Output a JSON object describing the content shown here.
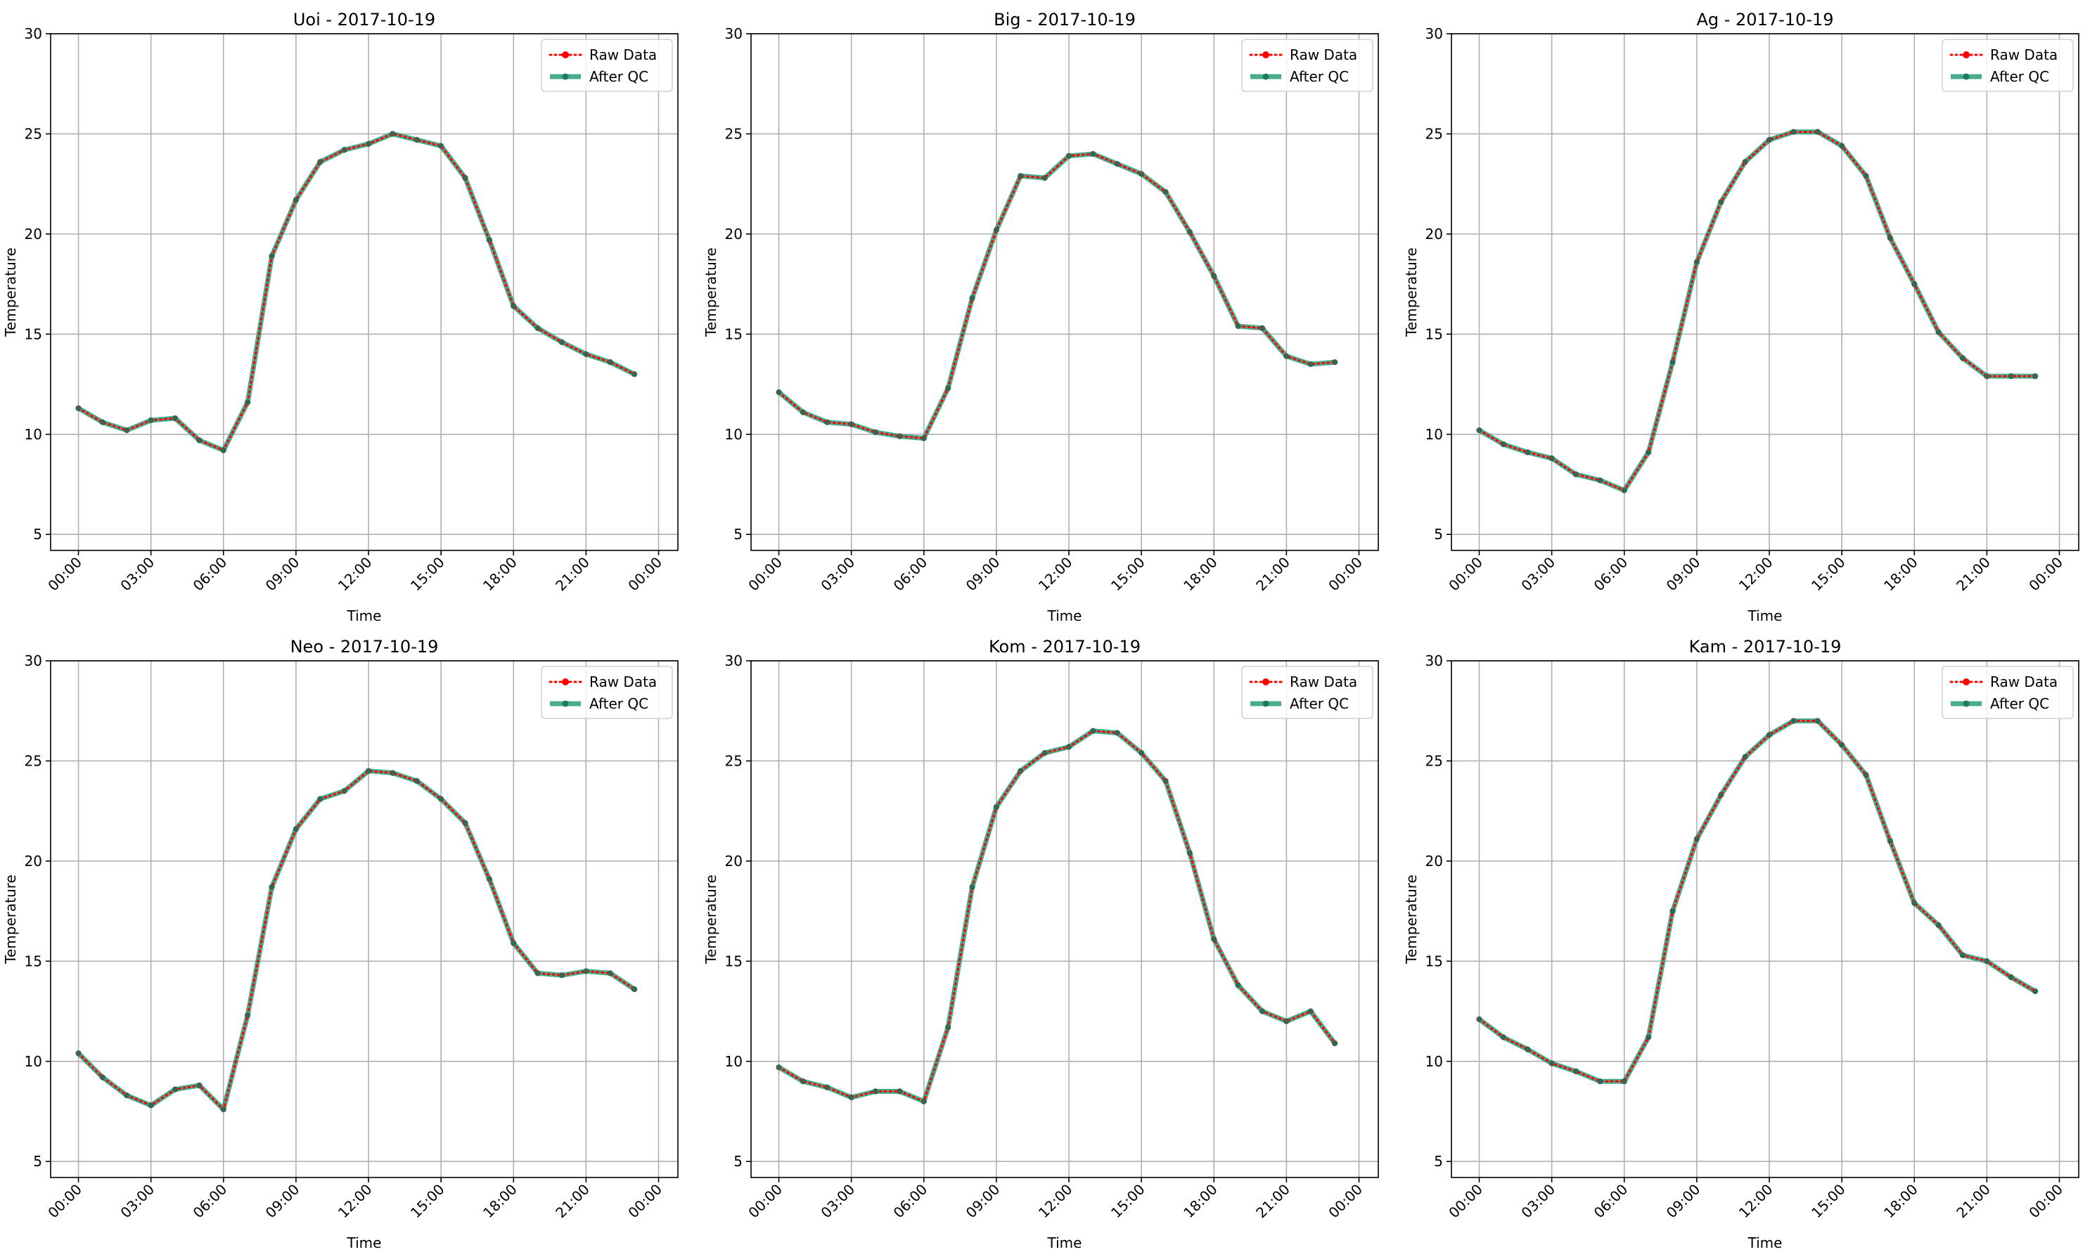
{
  "chart_data": [
    {
      "type": "line",
      "title": "Uoi - 2017-10-19",
      "xlabel": "Time",
      "ylabel": "Temperature",
      "x_hours": [
        0,
        1,
        2,
        3,
        4,
        5,
        6,
        7,
        8,
        9,
        10,
        11,
        12,
        13,
        14,
        15,
        16,
        17,
        18,
        19,
        20,
        21,
        22,
        23
      ],
      "x_ticks": [
        "00:00",
        "03:00",
        "06:00",
        "09:00",
        "12:00",
        "15:00",
        "18:00",
        "21:00",
        "00:00"
      ],
      "ylim": [
        4.2,
        30.0
      ],
      "y_ticks": [
        5,
        10,
        15,
        20,
        25,
        30
      ],
      "grid": true,
      "legend": "top-right",
      "series": [
        {
          "name": "Raw Data",
          "color": "#ff0000",
          "style": "dotted-markers",
          "values": [
            11.3,
            10.6,
            10.2,
            10.7,
            10.8,
            9.7,
            9.2,
            11.6,
            18.9,
            21.7,
            23.6,
            24.2,
            24.5,
            25.0,
            24.7,
            24.4,
            22.8,
            19.7,
            16.4,
            15.3,
            14.6,
            14.0,
            13.6,
            13.0
          ]
        },
        {
          "name": "After QC",
          "color": "#2a9d7a",
          "style": "solid-markers",
          "values": [
            11.3,
            10.6,
            10.2,
            10.7,
            10.8,
            9.7,
            9.2,
            11.6,
            18.9,
            21.7,
            23.6,
            24.2,
            24.5,
            25.0,
            24.7,
            24.4,
            22.8,
            19.7,
            16.4,
            15.3,
            14.6,
            14.0,
            13.6,
            13.0
          ]
        }
      ]
    },
    {
      "type": "line",
      "title": "Big - 2017-10-19",
      "xlabel": "Time",
      "ylabel": "Temperature",
      "x_hours": [
        0,
        1,
        2,
        3,
        4,
        5,
        6,
        7,
        8,
        9,
        10,
        11,
        12,
        13,
        14,
        15,
        16,
        17,
        18,
        19,
        20,
        21,
        22,
        23
      ],
      "x_ticks": [
        "00:00",
        "03:00",
        "06:00",
        "09:00",
        "12:00",
        "15:00",
        "18:00",
        "21:00",
        "00:00"
      ],
      "ylim": [
        4.2,
        30.0
      ],
      "y_ticks": [
        5,
        10,
        15,
        20,
        25,
        30
      ],
      "grid": true,
      "legend": "top-right",
      "series": [
        {
          "name": "Raw Data",
          "color": "#ff0000",
          "style": "dotted-markers",
          "values": [
            12.1,
            11.1,
            10.6,
            10.5,
            10.1,
            9.9,
            9.8,
            12.3,
            16.8,
            20.2,
            22.9,
            22.8,
            23.9,
            24.0,
            23.5,
            23.0,
            22.1,
            20.1,
            17.9,
            15.4,
            15.3,
            13.9,
            13.5,
            13.6
          ]
        },
        {
          "name": "After QC",
          "color": "#2a9d7a",
          "style": "solid-markers",
          "values": [
            12.1,
            11.1,
            10.6,
            10.5,
            10.1,
            9.9,
            9.8,
            12.3,
            16.8,
            20.2,
            22.9,
            22.8,
            23.9,
            24.0,
            23.5,
            23.0,
            22.1,
            20.1,
            17.9,
            15.4,
            15.3,
            13.9,
            13.5,
            13.6
          ]
        }
      ]
    },
    {
      "type": "line",
      "title": "Ag - 2017-10-19",
      "xlabel": "Time",
      "ylabel": "Temperature",
      "x_hours": [
        0,
        1,
        2,
        3,
        4,
        5,
        6,
        7,
        8,
        9,
        10,
        11,
        12,
        13,
        14,
        15,
        16,
        17,
        18,
        19,
        20,
        21,
        22,
        23
      ],
      "x_ticks": [
        "00:00",
        "03:00",
        "06:00",
        "09:00",
        "12:00",
        "15:00",
        "18:00",
        "21:00",
        "00:00"
      ],
      "ylim": [
        4.2,
        30.0
      ],
      "y_ticks": [
        5,
        10,
        15,
        20,
        25,
        30
      ],
      "grid": true,
      "legend": "top-right",
      "series": [
        {
          "name": "Raw Data",
          "color": "#ff0000",
          "style": "dotted-markers",
          "values": [
            10.2,
            9.5,
            9.1,
            8.8,
            8.0,
            7.7,
            7.2,
            9.1,
            13.6,
            18.6,
            21.6,
            23.6,
            24.7,
            25.1,
            25.1,
            24.4,
            22.9,
            19.8,
            17.5,
            15.1,
            13.8,
            12.9,
            12.9,
            12.9
          ]
        },
        {
          "name": "After QC",
          "color": "#2a9d7a",
          "style": "solid-markers",
          "values": [
            10.2,
            9.5,
            9.1,
            8.8,
            8.0,
            7.7,
            7.2,
            9.1,
            13.6,
            18.6,
            21.6,
            23.6,
            24.7,
            25.1,
            25.1,
            24.4,
            22.9,
            19.8,
            17.5,
            15.1,
            13.8,
            12.9,
            12.9,
            12.9
          ]
        }
      ]
    },
    {
      "type": "line",
      "title": "Neo - 2017-10-19",
      "xlabel": "Time",
      "ylabel": "Temperature",
      "x_hours": [
        0,
        1,
        2,
        3,
        4,
        5,
        6,
        7,
        8,
        9,
        10,
        11,
        12,
        13,
        14,
        15,
        16,
        17,
        18,
        19,
        20,
        21,
        22,
        23
      ],
      "x_ticks": [
        "00:00",
        "03:00",
        "06:00",
        "09:00",
        "12:00",
        "15:00",
        "18:00",
        "21:00",
        "00:00"
      ],
      "ylim": [
        4.2,
        30.0
      ],
      "y_ticks": [
        5,
        10,
        15,
        20,
        25,
        30
      ],
      "grid": true,
      "legend": "top-right",
      "series": [
        {
          "name": "Raw Data",
          "color": "#ff0000",
          "style": "dotted-markers",
          "values": [
            10.4,
            9.2,
            8.3,
            7.8,
            8.6,
            8.8,
            7.6,
            12.3,
            18.7,
            21.6,
            23.1,
            23.5,
            24.5,
            24.4,
            24.0,
            23.1,
            21.9,
            19.1,
            15.9,
            14.4,
            14.3,
            14.5,
            14.4,
            13.6
          ]
        },
        {
          "name": "After QC",
          "color": "#2a9d7a",
          "style": "solid-markers",
          "values": [
            10.4,
            9.2,
            8.3,
            7.8,
            8.6,
            8.8,
            7.6,
            12.3,
            18.7,
            21.6,
            23.1,
            23.5,
            24.5,
            24.4,
            24.0,
            23.1,
            21.9,
            19.1,
            15.9,
            14.4,
            14.3,
            14.5,
            14.4,
            13.6
          ]
        }
      ]
    },
    {
      "type": "line",
      "title": "Kom - 2017-10-19",
      "xlabel": "Time",
      "ylabel": "Temperature",
      "x_hours": [
        0,
        1,
        2,
        3,
        4,
        5,
        6,
        7,
        8,
        9,
        10,
        11,
        12,
        13,
        14,
        15,
        16,
        17,
        18,
        19,
        20,
        21,
        22,
        23
      ],
      "x_ticks": [
        "00:00",
        "03:00",
        "06:00",
        "09:00",
        "12:00",
        "15:00",
        "18:00",
        "21:00",
        "00:00"
      ],
      "ylim": [
        4.2,
        30.0
      ],
      "y_ticks": [
        5,
        10,
        15,
        20,
        25,
        30
      ],
      "grid": true,
      "legend": "top-right",
      "series": [
        {
          "name": "Raw Data",
          "color": "#ff0000",
          "style": "dotted-markers",
          "values": [
            9.7,
            9.0,
            8.7,
            8.2,
            8.5,
            8.5,
            8.0,
            11.7,
            18.7,
            22.7,
            24.5,
            25.4,
            25.7,
            26.5,
            26.4,
            25.4,
            24.0,
            20.4,
            16.1,
            13.8,
            12.5,
            12.0,
            12.5,
            10.9
          ]
        },
        {
          "name": "After QC",
          "color": "#2a9d7a",
          "style": "solid-markers",
          "values": [
            9.7,
            9.0,
            8.7,
            8.2,
            8.5,
            8.5,
            8.0,
            11.7,
            18.7,
            22.7,
            24.5,
            25.4,
            25.7,
            26.5,
            26.4,
            25.4,
            24.0,
            20.4,
            16.1,
            13.8,
            12.5,
            12.0,
            12.5,
            10.9
          ]
        }
      ]
    },
    {
      "type": "line",
      "title": "Kam - 2017-10-19",
      "xlabel": "Time",
      "ylabel": "Temperature",
      "x_hours": [
        0,
        1,
        2,
        3,
        4,
        5,
        6,
        7,
        8,
        9,
        10,
        11,
        12,
        13,
        14,
        15,
        16,
        17,
        18,
        19,
        20,
        21,
        22,
        23
      ],
      "x_ticks": [
        "00:00",
        "03:00",
        "06:00",
        "09:00",
        "12:00",
        "15:00",
        "18:00",
        "21:00",
        "00:00"
      ],
      "ylim": [
        4.2,
        30.0
      ],
      "y_ticks": [
        5,
        10,
        15,
        20,
        25,
        30
      ],
      "grid": true,
      "legend": "top-right",
      "series": [
        {
          "name": "Raw Data",
          "color": "#ff0000",
          "style": "dotted-markers",
          "values": [
            12.1,
            11.2,
            10.6,
            9.9,
            9.5,
            9.0,
            9.0,
            11.2,
            17.5,
            21.1,
            23.3,
            25.2,
            26.3,
            27.0,
            27.0,
            25.8,
            24.3,
            21.0,
            17.9,
            16.8,
            15.3,
            15.0,
            14.2,
            13.5
          ]
        },
        {
          "name": "After QC",
          "color": "#2a9d7a",
          "style": "solid-markers",
          "values": [
            12.1,
            11.2,
            10.6,
            9.9,
            9.5,
            9.0,
            9.0,
            11.2,
            17.5,
            21.1,
            23.3,
            25.2,
            26.3,
            27.0,
            27.0,
            25.8,
            24.3,
            21.0,
            17.9,
            16.8,
            15.3,
            15.0,
            14.2,
            13.5
          ]
        }
      ]
    }
  ]
}
